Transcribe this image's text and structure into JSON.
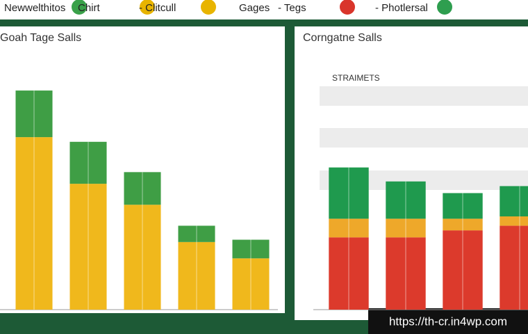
{
  "header": {
    "legend": [
      {
        "label": "Newwelthitos",
        "color": "#3aa14a"
      },
      {
        "label": "Chirt",
        "color": "#e8b400"
      },
      {
        "label": "- Clitcull",
        "color": "#e8b400"
      },
      {
        "label": "Gages",
        "color": null
      },
      {
        "label": "- Tegs",
        "color": "#d9352b"
      },
      {
        "label": "- Photlersal",
        "color": "#2e9e4f"
      }
    ]
  },
  "chart_data": [
    {
      "type": "bar",
      "stacked": true,
      "title": "Goah Tage Salls",
      "categories": [
        null,
        null,
        null,
        null,
        null
      ],
      "ylim": [
        0,
        100
      ],
      "series": [
        {
          "color": "#f0b81c",
          "values": [
            74,
            54,
            45,
            29,
            22
          ]
        },
        {
          "color": "#3f9e45",
          "values": [
            20,
            18,
            14,
            7,
            8
          ]
        }
      ]
    },
    {
      "type": "bar",
      "stacked": true,
      "title": "Corngatne Salls",
      "subtitle": "STRAIMETS",
      "categories": [
        null,
        null,
        null,
        null
      ],
      "ylim": [
        0,
        100
      ],
      "series": [
        {
          "color": "#dc3a2c",
          "values": [
            31,
            31,
            34,
            36
          ]
        },
        {
          "color": "#eea82a",
          "values": [
            8,
            8,
            5,
            4
          ]
        },
        {
          "color": "#1f9a4e",
          "values": [
            22,
            16,
            11,
            13
          ]
        }
      ]
    }
  ],
  "watermark": "https://th-cr.in4wp.com"
}
